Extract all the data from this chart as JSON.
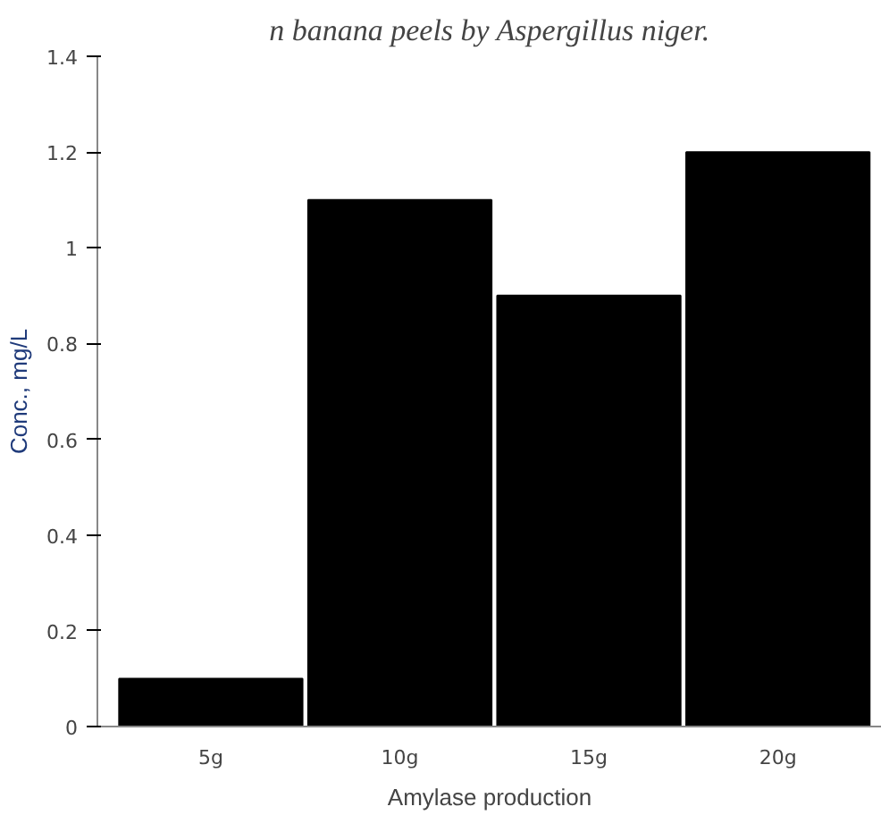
{
  "chart_data": {
    "type": "bar",
    "title": "n banana peels by Aspergillus niger.",
    "categories": [
      "5g",
      "10g",
      "15g",
      "20g"
    ],
    "values": [
      0.1,
      1.1,
      0.9,
      1.2
    ],
    "color": "#000000",
    "xlabel": "Amylase production",
    "ylabel": "Conc., mg/L",
    "ylim": [
      0,
      1.4
    ],
    "yticks": [
      0,
      0.2,
      0.4,
      0.6,
      0.8,
      1,
      1.2,
      1.4
    ],
    "grid": false
  }
}
